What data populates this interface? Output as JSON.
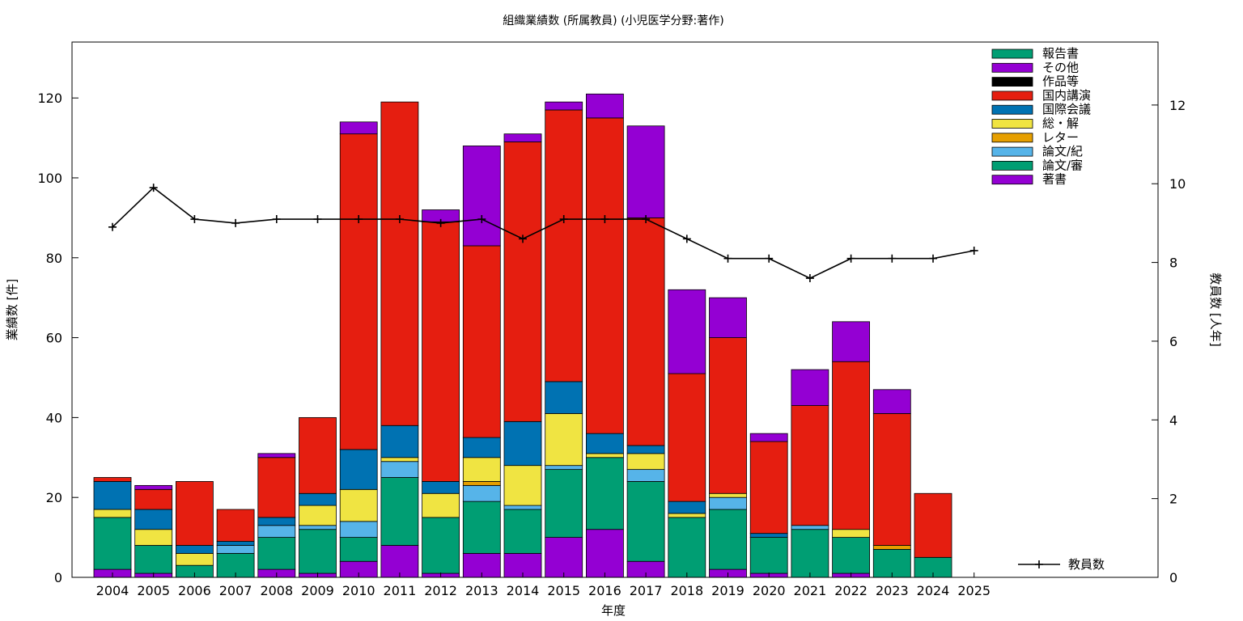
{
  "chart_data": {
    "type": "bar",
    "stacked": true,
    "title": "組織業績数 (所属教員) (小児医学分野:著作)",
    "xlabel": "年度",
    "ylabel": "業績数 [件]",
    "y2label": "教員数 [人年]",
    "ylim": [
      0,
      134
    ],
    "y2lim": [
      0,
      13.6
    ],
    "yticks": [
      0,
      20,
      40,
      60,
      80,
      100,
      120
    ],
    "y2ticks": [
      0,
      2,
      4,
      6,
      8,
      10,
      12
    ],
    "grid": false,
    "legend_position": "top-right",
    "categories": [
      "2004",
      "2005",
      "2006",
      "2007",
      "2008",
      "2009",
      "2010",
      "2011",
      "2012",
      "2013",
      "2014",
      "2015",
      "2016",
      "2017",
      "2018",
      "2019",
      "2020",
      "2021",
      "2022",
      "2023",
      "2024",
      "2025"
    ],
    "series": [
      {
        "name": "著書",
        "color": "#9400d3",
        "values": [
          2,
          1,
          0,
          0,
          2,
          1,
          4,
          8,
          1,
          6,
          6,
          10,
          12,
          4,
          0,
          2,
          1,
          0,
          1,
          0,
          0,
          0
        ]
      },
      {
        "name": "論文/審",
        "color": "#009e73",
        "values": [
          13,
          7,
          3,
          6,
          8,
          11,
          6,
          17,
          14,
          13,
          11,
          17,
          18,
          20,
          15,
          15,
          9,
          12,
          9,
          7,
          5,
          0
        ]
      },
      {
        "name": "論文/紀",
        "color": "#56b4e9",
        "values": [
          0,
          0,
          0,
          2,
          3,
          1,
          4,
          4,
          0,
          4,
          1,
          1,
          0,
          3,
          0,
          3,
          0,
          1,
          0,
          0,
          0,
          0
        ]
      },
      {
        "name": "レター",
        "color": "#e69f00",
        "values": [
          0,
          0,
          0,
          0,
          0,
          0,
          0,
          0,
          0,
          1,
          0,
          0,
          0,
          0,
          0,
          0,
          0,
          0,
          0,
          1,
          0,
          0
        ]
      },
      {
        "name": "総・解",
        "color": "#f0e442",
        "values": [
          2,
          4,
          3,
          0,
          0,
          5,
          8,
          1,
          6,
          6,
          10,
          13,
          1,
          4,
          1,
          1,
          0,
          0,
          2,
          0,
          0,
          0
        ]
      },
      {
        "name": "国際会議",
        "color": "#0072b2",
        "values": [
          7,
          5,
          2,
          1,
          2,
          3,
          10,
          8,
          3,
          5,
          11,
          8,
          5,
          2,
          3,
          0,
          1,
          0,
          0,
          0,
          0,
          0
        ]
      },
      {
        "name": "国内講演",
        "color": "#e51e10",
        "values": [
          1,
          5,
          16,
          8,
          15,
          19,
          79,
          81,
          65,
          48,
          70,
          68,
          79,
          57,
          32,
          39,
          23,
          30,
          42,
          33,
          16,
          0
        ]
      },
      {
        "name": "作品等",
        "color": "#000000",
        "values": [
          0,
          0,
          0,
          0,
          0,
          0,
          0,
          0,
          0,
          0,
          0,
          0,
          0,
          0,
          0,
          0,
          0,
          0,
          0,
          0,
          0,
          0
        ]
      },
      {
        "name": "その他",
        "color": "#9400d3",
        "values": [
          0,
          1,
          0,
          0,
          1,
          0,
          3,
          0,
          3,
          25,
          2,
          2,
          6,
          23,
          21,
          10,
          2,
          9,
          10,
          6,
          0,
          0
        ]
      },
      {
        "name": "報告書",
        "color": "#009e73",
        "values": [
          0,
          0,
          0,
          0,
          0,
          0,
          0,
          0,
          0,
          0,
          0,
          0,
          0,
          0,
          0,
          0,
          0,
          0,
          0,
          0,
          0,
          0
        ]
      }
    ],
    "line_series": {
      "name": "教員数",
      "color": "#000000",
      "values": [
        8.9,
        9.9,
        9.1,
        9.0,
        9.1,
        9.1,
        9.1,
        9.1,
        9.0,
        9.1,
        8.6,
        9.1,
        9.1,
        9.1,
        8.6,
        8.1,
        8.1,
        7.6,
        8.1,
        8.1,
        8.1,
        8.3
      ]
    }
  }
}
